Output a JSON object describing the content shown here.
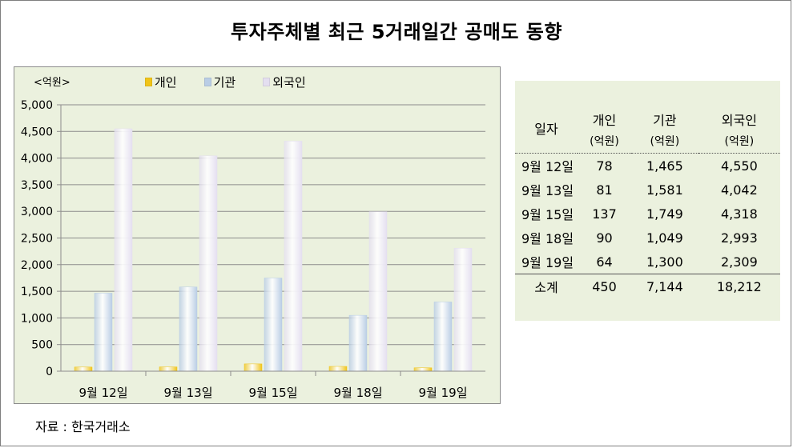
{
  "title": "투자주체별 최근 5거래일간 공매도 동향",
  "source": "자료 : 한국거래소",
  "chart_data": {
    "type": "bar",
    "unit_label": "<억원>",
    "categories": [
      "9월 12일",
      "9월 13일",
      "9월 15일",
      "9월 18일",
      "9월 19일"
    ],
    "series": [
      {
        "name": "개인",
        "values": [
          78,
          81,
          137,
          90,
          64
        ],
        "color": "#f0c419"
      },
      {
        "name": "기관",
        "values": [
          1465,
          1581,
          1749,
          1049,
          1300
        ],
        "color": "#b9cde5"
      },
      {
        "name": "외국인",
        "values": [
          4550,
          4042,
          4318,
          2993,
          2309
        ],
        "color": "#e4dff0"
      }
    ],
    "ylim": [
      0,
      5000
    ],
    "yticks": [
      0,
      500,
      1000,
      1500,
      2000,
      2500,
      3000,
      3500,
      4000,
      4500,
      5000
    ],
    "ytick_labels": [
      "0",
      "500",
      "1,000",
      "1,500",
      "2,000",
      "2,500",
      "3,000",
      "3,500",
      "4,000",
      "4,500",
      "5,000"
    ],
    "grid": true,
    "legend_position": "top"
  },
  "table": {
    "headers": [
      "일자",
      "개인",
      "기관",
      "외국인"
    ],
    "units": [
      "(억원)",
      "(억원)",
      "(억원)"
    ],
    "rows": [
      {
        "date": "9월 12일",
        "individual": "78",
        "institution": "1,465",
        "foreign": "4,550"
      },
      {
        "date": "9월 13일",
        "individual": "81",
        "institution": "1,581",
        "foreign": "4,042"
      },
      {
        "date": "9월 15일",
        "individual": "137",
        "institution": "1,749",
        "foreign": "4,318"
      },
      {
        "date": "9월 18일",
        "individual": "90",
        "institution": "1,049",
        "foreign": "2,993"
      },
      {
        "date": "9월 19일",
        "individual": "64",
        "institution": "1,300",
        "foreign": "2,309"
      }
    ],
    "total": {
      "label": "소계",
      "individual": "450",
      "institution": "7,144",
      "foreign": "18,212"
    }
  }
}
